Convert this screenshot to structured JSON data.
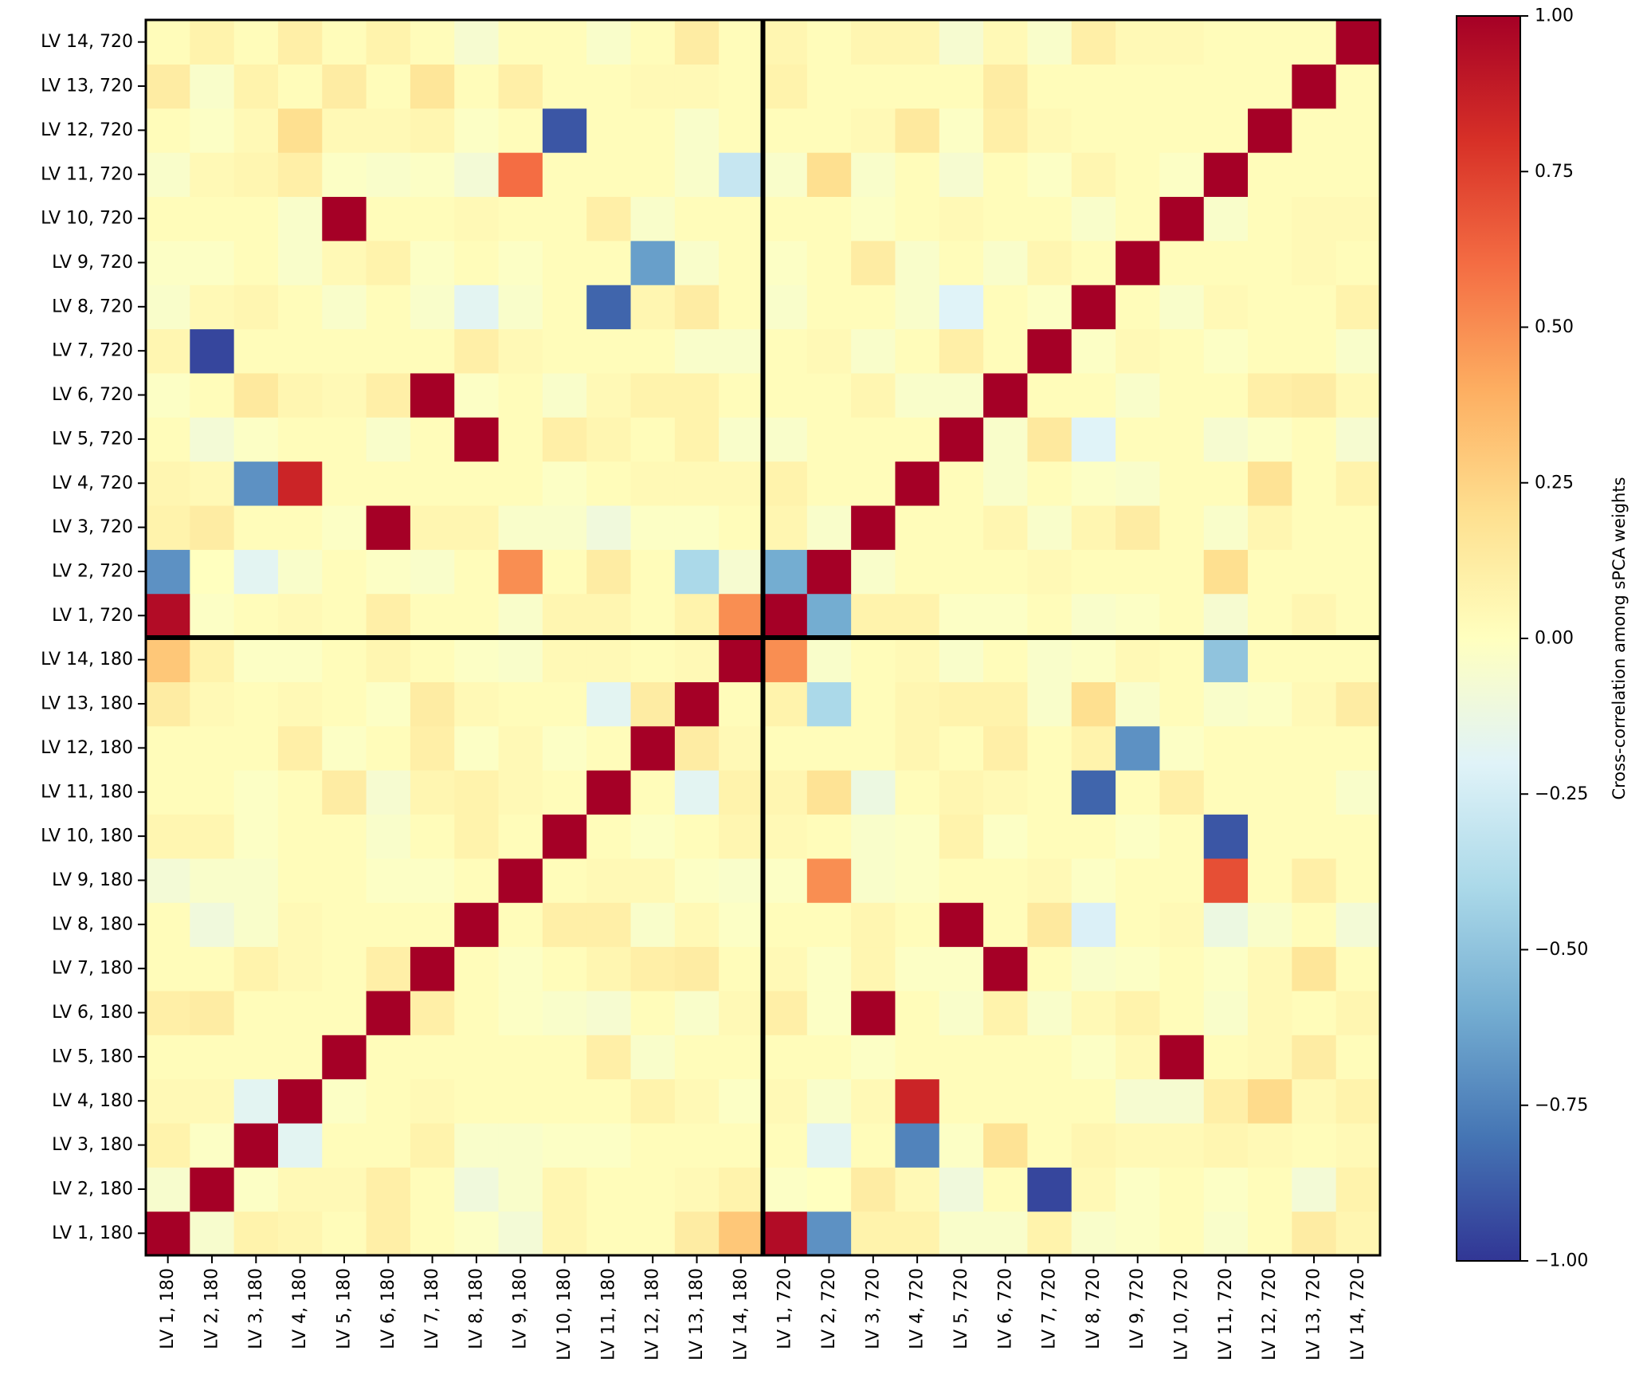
{
  "chart_data": {
    "type": "heatmap",
    "title": "",
    "xlabel": "",
    "ylabel": "",
    "x_labels": [
      "LV 1, 180",
      "LV 2, 180",
      "LV 3, 180",
      "LV 4, 180",
      "LV 5, 180",
      "LV 6, 180",
      "LV 7, 180",
      "LV 8, 180",
      "LV 9, 180",
      "LV 10, 180",
      "LV 11, 180",
      "LV 12, 180",
      "LV 13, 180",
      "LV 14, 180",
      "LV 1, 720",
      "LV 2, 720",
      "LV 3, 720",
      "LV 4, 720",
      "LV 5, 720",
      "LV 6, 720",
      "LV 7, 720",
      "LV 8, 720",
      "LV 9, 720",
      "LV 10, 720",
      "LV 11, 720",
      "LV 12, 720",
      "LV 13, 720",
      "LV 14, 720"
    ],
    "y_labels": [
      "LV 1, 180",
      "LV 2, 180",
      "LV 3, 180",
      "LV 4, 180",
      "LV 5, 180",
      "LV 6, 180",
      "LV 7, 180",
      "LV 8, 180",
      "LV 9, 180",
      "LV 10, 180",
      "LV 11, 180",
      "LV 12, 180",
      "LV 13, 180",
      "LV 14, 180",
      "LV 1, 720",
      "LV 2, 720",
      "LV 3, 720",
      "LV 4, 720",
      "LV 5, 720",
      "LV 6, 720",
      "LV 7, 720",
      "LV 8, 720",
      "LV 9, 720",
      "LV 10, 720",
      "LV 11, 720",
      "LV 12, 720",
      "LV 13, 720",
      "LV 14, 720"
    ],
    "divider_after_index": 14,
    "colorbar": {
      "label": "Cross-correlation among sPCA weights",
      "range": [
        -1,
        1
      ],
      "ticks": [
        -1,
        -0.75,
        -0.5,
        -0.25,
        0,
        0.25,
        0.5,
        0.75,
        1
      ],
      "tick_labels": [
        "−1.00",
        "−0.75",
        "−0.50",
        "−0.25",
        "0.00",
        "0.25",
        "0.50",
        "0.75",
        "1.00"
      ]
    },
    "values": [
      [
        1.0,
        -0.05,
        0.08,
        0.06,
        0.02,
        0.1,
        0.02,
        -0.02,
        -0.08,
        0.06,
        0.02,
        0.02,
        0.12,
        0.3,
        0.95,
        -0.7,
        0.08,
        0.08,
        -0.04,
        -0.04,
        0.08,
        -0.04,
        -0.02,
        0.02,
        -0.04,
        0.02,
        0.12,
        0.06
      ],
      [
        -0.05,
        1.0,
        -0.02,
        0.04,
        0.04,
        0.1,
        0.02,
        -0.1,
        -0.04,
        0.06,
        0.02,
        0.02,
        0.04,
        0.08,
        -0.02,
        0.0,
        0.12,
        0.04,
        -0.1,
        0.02,
        -0.95,
        0.04,
        -0.02,
        0.02,
        -0.02,
        0.02,
        -0.08,
        0.08
      ],
      [
        0.08,
        -0.02,
        1.0,
        -0.18,
        0.02,
        0.02,
        0.08,
        -0.04,
        -0.04,
        -0.02,
        -0.02,
        0.02,
        0.02,
        0.02,
        0.02,
        -0.18,
        0.02,
        -0.75,
        -0.02,
        0.18,
        0.02,
        0.06,
        0.04,
        0.04,
        0.06,
        0.04,
        0.02,
        0.04
      ],
      [
        0.04,
        0.04,
        -0.18,
        1.0,
        -0.02,
        0.02,
        0.04,
        0.02,
        0.02,
        0.02,
        0.02,
        0.08,
        0.04,
        -0.02,
        0.04,
        -0.04,
        0.04,
        0.85,
        0.02,
        0.02,
        0.02,
        0.02,
        -0.06,
        -0.06,
        0.1,
        0.22,
        0.04,
        0.08
      ],
      [
        0.02,
        0.02,
        0.02,
        0.02,
        1.0,
        0.02,
        0.02,
        0.02,
        0.02,
        0.02,
        0.1,
        -0.04,
        0.02,
        0.02,
        0.02,
        0.02,
        -0.02,
        0.02,
        0.02,
        0.02,
        0.02,
        -0.02,
        0.04,
        1.0,
        0.02,
        0.04,
        0.12,
        0.02
      ],
      [
        0.1,
        0.12,
        0.02,
        0.02,
        0.02,
        1.0,
        0.1,
        0.02,
        -0.02,
        -0.04,
        -0.06,
        0.02,
        -0.04,
        0.04,
        0.1,
        -0.02,
        1.0,
        0.02,
        -0.04,
        0.08,
        -0.04,
        0.04,
        0.08,
        0.02,
        -0.04,
        0.04,
        0.02,
        0.06
      ],
      [
        0.02,
        0.02,
        0.08,
        0.04,
        0.02,
        0.1,
        1.0,
        0.02,
        -0.02,
        0.02,
        0.06,
        0.1,
        0.12,
        0.02,
        0.04,
        -0.02,
        0.06,
        -0.02,
        -0.02,
        1.0,
        0.02,
        -0.04,
        -0.02,
        0.02,
        -0.02,
        0.04,
        0.16,
        0.02
      ],
      [
        0.02,
        -0.1,
        -0.04,
        0.04,
        0.02,
        0.02,
        0.02,
        1.0,
        0.02,
        0.1,
        0.1,
        -0.04,
        0.04,
        -0.02,
        0.02,
        0.02,
        0.06,
        0.02,
        1.0,
        0.02,
        0.14,
        -0.22,
        0.02,
        0.04,
        -0.12,
        -0.04,
        0.02,
        -0.08
      ],
      [
        -0.08,
        -0.04,
        -0.04,
        0.02,
        0.02,
        -0.02,
        -0.02,
        0.02,
        1.0,
        0.02,
        0.04,
        0.04,
        -0.02,
        -0.04,
        -0.02,
        0.5,
        -0.04,
        -0.02,
        0.02,
        0.02,
        0.04,
        -0.02,
        0.02,
        0.02,
        0.7,
        0.02,
        0.1,
        0.02
      ],
      [
        0.06,
        0.06,
        -0.02,
        0.02,
        0.02,
        -0.04,
        0.02,
        0.08,
        0.02,
        1.0,
        0.02,
        -0.02,
        0.02,
        0.06,
        0.04,
        0.02,
        -0.04,
        -0.02,
        0.08,
        -0.02,
        0.02,
        0.02,
        -0.02,
        0.02,
        -0.9,
        0.02,
        0.02,
        0.02
      ],
      [
        0.02,
        0.02,
        -0.02,
        0.02,
        0.12,
        -0.06,
        0.06,
        0.08,
        0.04,
        0.02,
        1.0,
        0.02,
        -0.18,
        0.08,
        0.06,
        0.18,
        -0.12,
        0.02,
        0.06,
        0.04,
        0.02,
        -0.85,
        0.02,
        0.1,
        0.02,
        0.02,
        0.02,
        -0.04
      ],
      [
        0.02,
        0.02,
        0.02,
        0.1,
        -0.02,
        0.02,
        0.1,
        -0.02,
        0.04,
        -0.02,
        0.02,
        1.0,
        0.12,
        0.04,
        0.02,
        0.02,
        0.02,
        0.06,
        0.02,
        0.1,
        0.02,
        0.08,
        -0.7,
        -0.02,
        0.02,
        0.02,
        0.02,
        0.02
      ],
      [
        0.12,
        0.04,
        0.02,
        0.04,
        0.02,
        -0.02,
        0.12,
        0.04,
        0.02,
        0.02,
        -0.18,
        0.12,
        1.0,
        0.02,
        0.08,
        -0.4,
        0.02,
        0.06,
        0.08,
        0.08,
        -0.04,
        0.2,
        -0.04,
        0.02,
        -0.04,
        -0.02,
        0.04,
        0.12
      ],
      [
        0.3,
        0.08,
        -0.02,
        -0.02,
        0.02,
        0.06,
        0.02,
        -0.02,
        -0.04,
        0.04,
        0.04,
        0.02,
        0.04,
        1.0,
        0.5,
        -0.04,
        0.02,
        0.04,
        -0.04,
        0.02,
        -0.04,
        -0.02,
        0.04,
        0.02,
        -0.5,
        0.02,
        0.02,
        0.02
      ],
      [
        0.95,
        -0.02,
        0.02,
        0.04,
        0.02,
        0.1,
        0.02,
        0.02,
        -0.04,
        0.06,
        0.06,
        0.02,
        0.08,
        0.5,
        1.0,
        -0.6,
        0.08,
        0.08,
        -0.02,
        -0.02,
        0.02,
        -0.04,
        -0.02,
        0.02,
        -0.06,
        0.02,
        0.06,
        0.02
      ],
      [
        -0.7,
        0.0,
        -0.18,
        -0.04,
        0.02,
        -0.02,
        -0.04,
        0.02,
        0.5,
        0.02,
        0.12,
        0.02,
        -0.4,
        -0.06,
        -0.6,
        1.0,
        -0.04,
        0.02,
        0.02,
        0.02,
        0.04,
        0.02,
        0.02,
        0.02,
        0.2,
        0.02,
        0.02,
        0.02
      ],
      [
        0.08,
        0.12,
        0.02,
        0.02,
        -0.02,
        1.0,
        0.06,
        0.06,
        -0.04,
        -0.04,
        -0.1,
        -0.02,
        -0.02,
        0.02,
        0.06,
        -0.04,
        1.0,
        0.02,
        0.02,
        0.06,
        -0.04,
        0.06,
        0.12,
        0.02,
        -0.04,
        0.06,
        0.02,
        0.02
      ],
      [
        0.06,
        0.04,
        -0.7,
        0.85,
        0.02,
        0.02,
        0.02,
        0.02,
        0.02,
        -0.02,
        0.02,
        0.04,
        0.04,
        0.04,
        0.08,
        0.02,
        0.02,
        1.0,
        0.02,
        -0.04,
        0.02,
        -0.02,
        -0.04,
        0.02,
        0.02,
        0.18,
        0.02,
        0.08
      ],
      [
        0.02,
        -0.08,
        -0.02,
        0.02,
        0.02,
        -0.04,
        0.02,
        1.0,
        0.02,
        0.1,
        0.06,
        0.02,
        0.08,
        -0.04,
        -0.04,
        0.02,
        0.02,
        0.02,
        1.0,
        -0.04,
        0.14,
        -0.2,
        0.02,
        0.02,
        -0.06,
        -0.02,
        0.02,
        -0.06
      ],
      [
        -0.02,
        0.02,
        0.14,
        0.06,
        0.04,
        0.1,
        1.0,
        -0.02,
        0.02,
        -0.04,
        0.04,
        0.08,
        0.08,
        0.02,
        0.02,
        0.02,
        0.06,
        -0.04,
        -0.04,
        1.0,
        0.02,
        0.02,
        -0.04,
        0.02,
        0.02,
        0.1,
        0.12,
        0.04
      ],
      [
        0.06,
        -0.95,
        0.02,
        0.02,
        0.02,
        0.02,
        0.02,
        0.1,
        0.04,
        0.02,
        0.02,
        0.02,
        -0.04,
        -0.04,
        0.02,
        0.04,
        -0.04,
        0.02,
        0.1,
        0.02,
        1.0,
        -0.02,
        0.04,
        0.02,
        -0.02,
        0.02,
        0.02,
        -0.04
      ],
      [
        -0.04,
        0.04,
        0.06,
        0.02,
        -0.04,
        0.02,
        -0.04,
        -0.18,
        -0.04,
        0.02,
        -0.85,
        0.06,
        0.12,
        0.02,
        -0.04,
        0.02,
        0.02,
        -0.04,
        -0.2,
        0.02,
        -0.02,
        1.0,
        0.02,
        -0.04,
        0.04,
        0.02,
        0.02,
        0.08
      ],
      [
        -0.02,
        -0.02,
        0.02,
        -0.04,
        0.04,
        0.08,
        -0.02,
        0.02,
        -0.02,
        0.02,
        0.02,
        -0.65,
        -0.04,
        0.02,
        -0.02,
        0.02,
        0.12,
        -0.04,
        0.02,
        -0.04,
        0.06,
        0.02,
        1.0,
        0.02,
        0.02,
        0.02,
        0.04,
        0.02
      ],
      [
        0.02,
        0.02,
        0.02,
        -0.04,
        1.0,
        0.02,
        0.02,
        0.04,
        0.02,
        0.02,
        0.1,
        -0.04,
        0.02,
        0.02,
        0.02,
        0.02,
        -0.02,
        0.02,
        0.04,
        0.02,
        0.02,
        -0.04,
        0.02,
        1.0,
        -0.04,
        0.02,
        0.04,
        0.04
      ],
      [
        -0.04,
        0.04,
        0.06,
        0.1,
        -0.02,
        -0.04,
        -0.02,
        -0.08,
        0.6,
        0.02,
        0.02,
        0.02,
        -0.04,
        -0.3,
        -0.04,
        0.2,
        -0.04,
        0.02,
        -0.06,
        0.02,
        -0.02,
        0.06,
        0.02,
        -0.02,
        1.0,
        0.02,
        0.02,
        0.02
      ],
      [
        0.02,
        -0.02,
        0.04,
        0.2,
        0.04,
        0.04,
        0.06,
        -0.02,
        0.02,
        -0.9,
        0.02,
        0.02,
        -0.04,
        0.02,
        0.02,
        0.02,
        0.04,
        0.14,
        -0.02,
        0.1,
        0.04,
        0.02,
        0.02,
        0.02,
        0.02,
        1.0,
        0.02,
        0.02
      ],
      [
        0.12,
        -0.04,
        0.08,
        0.02,
        0.12,
        0.02,
        0.16,
        0.02,
        0.1,
        0.02,
        0.02,
        0.04,
        0.04,
        0.02,
        0.08,
        0.02,
        0.02,
        0.02,
        0.02,
        0.12,
        0.02,
        0.02,
        0.02,
        0.02,
        0.02,
        0.02,
        1.0,
        0.02
      ],
      [
        0.02,
        0.08,
        0.02,
        0.1,
        0.02,
        0.08,
        0.02,
        -0.06,
        0.02,
        0.02,
        -0.04,
        0.02,
        0.12,
        0.02,
        0.06,
        0.02,
        0.06,
        0.06,
        -0.06,
        0.04,
        -0.04,
        0.1,
        0.04,
        0.04,
        0.02,
        0.02,
        0.02,
        1.0
      ]
    ]
  }
}
